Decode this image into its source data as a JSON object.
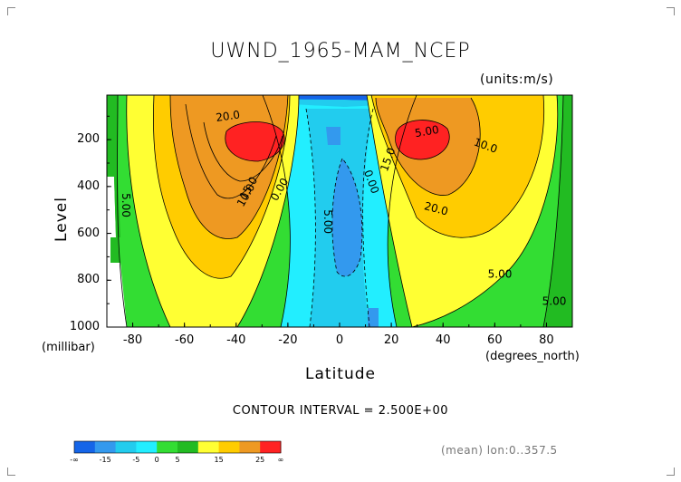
{
  "chart_data": {
    "type": "contour",
    "title": "UWND_1965-MAM_NCEP",
    "units": "(units:m/s)",
    "xlabel": "Latitude",
    "x_units": "(degrees_north)",
    "ylabel": "Level",
    "y_units": "(millibar)",
    "xlim": [
      -90,
      90
    ],
    "ylim": [
      1000,
      10
    ],
    "y_reversed": true,
    "x_ticks": [
      "-80",
      "-60",
      "-40",
      "-20",
      "0",
      "20",
      "40",
      "60",
      "80"
    ],
    "y_ticks": [
      "200",
      "400",
      "600",
      "800",
      "1000"
    ],
    "contour_interval": "CONTOUR INTERVAL = 2.500E+00",
    "contour_labels": [
      "20.0",
      "15.0",
      "10.0",
      "5.00",
      "0.00",
      "5.00",
      "0.00",
      "5.00",
      "15.0",
      "10.0",
      "20.0",
      "5.00",
      "5.00"
    ],
    "jets": [
      {
        "lat": -30,
        "level": 200,
        "max": 27.5
      },
      {
        "lat": 30,
        "level": 200,
        "max": 27.5
      }
    ],
    "colorbar": {
      "colors": [
        "#1565e8",
        "#3399ee",
        "#22ccee",
        "#22eeff",
        "#33dd33",
        "#22bb22",
        "#ffff33",
        "#ffcc00",
        "#ee9922",
        "#ff2222"
      ],
      "labels": [
        "-∞",
        "-15",
        "-5",
        "0",
        "5",
        "15",
        "25",
        "∞"
      ]
    },
    "footer": "(mean) lon:0..357.5"
  }
}
